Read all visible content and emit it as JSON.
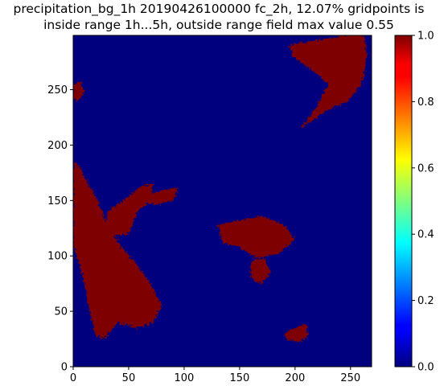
{
  "chart_data": {
    "type": "heatmap",
    "title_lines": [
      "precipitation_bg_1h 20190426100000 fc_2h, 12.07% gridpoints is",
      "inside range 1h...5h, outside range field max value 0.55"
    ],
    "xlabel": "",
    "ylabel": "",
    "xlim": [
      0,
      269
    ],
    "ylim": [
      0,
      299
    ],
    "x_ticks": [
      0,
      50,
      100,
      150,
      200,
      250
    ],
    "y_ticks": [
      0,
      50,
      100,
      150,
      200,
      250
    ],
    "x_tick_labels": [
      "0",
      "50",
      "100",
      "150",
      "200",
      "250"
    ],
    "y_tick_labels": [
      "0",
      "50",
      "100",
      "150",
      "200",
      "250"
    ],
    "colorbar": {
      "colormap": "jet",
      "range": [
        0.0,
        1.0
      ],
      "ticks": [
        0.0,
        0.2,
        0.4,
        0.6,
        0.8,
        1.0
      ],
      "tick_labels": [
        "0.0",
        "0.2",
        "0.4",
        "0.6",
        "0.8",
        "1.0"
      ]
    },
    "colors": {
      "background_value_color": "#00007f",
      "region_value_color": "#7f0000"
    },
    "cell_values": {
      "background": 0.0,
      "regions": 1.0
    },
    "regions": [
      {
        "name": "left-diagonal-band",
        "value": 1.0,
        "polygon": [
          [
            0,
            185
          ],
          [
            6,
            180
          ],
          [
            12,
            168
          ],
          [
            22,
            150
          ],
          [
            30,
            130
          ],
          [
            42,
            110
          ],
          [
            55,
            95
          ],
          [
            70,
            75
          ],
          [
            80,
            55
          ],
          [
            72,
            40
          ],
          [
            58,
            35
          ],
          [
            40,
            40
          ],
          [
            28,
            25
          ],
          [
            20,
            28
          ],
          [
            15,
            50
          ],
          [
            8,
            85
          ],
          [
            0,
            110
          ]
        ]
      },
      {
        "name": "left-band-upper-lobe",
        "value": 1.0,
        "polygon": [
          [
            30,
            140
          ],
          [
            45,
            150
          ],
          [
            60,
            162
          ],
          [
            72,
            165
          ],
          [
            70,
            150
          ],
          [
            58,
            140
          ],
          [
            50,
            120
          ],
          [
            38,
            118
          ],
          [
            30,
            128
          ]
        ]
      },
      {
        "name": "top-right-streak",
        "value": 1.0,
        "polygon": [
          [
            195,
            290
          ],
          [
            215,
            294
          ],
          [
            245,
            299
          ],
          [
            262,
            299
          ],
          [
            265,
            278
          ],
          [
            260,
            255
          ],
          [
            248,
            240
          ],
          [
            230,
            232
          ],
          [
            215,
            222
          ],
          [
            205,
            215
          ],
          [
            220,
            235
          ],
          [
            230,
            255
          ],
          [
            215,
            268
          ],
          [
            198,
            280
          ]
        ]
      },
      {
        "name": "top-right-upper-lobe",
        "value": 1.0,
        "polygon": [
          [
            230,
            280
          ],
          [
            245,
            290
          ],
          [
            262,
            298
          ],
          [
            264,
            285
          ],
          [
            250,
            278
          ],
          [
            238,
            274
          ]
        ]
      },
      {
        "name": "center-cluster",
        "value": 1.0,
        "polygon": [
          [
            130,
            128
          ],
          [
            150,
            132
          ],
          [
            170,
            136
          ],
          [
            190,
            128
          ],
          [
            200,
            115
          ],
          [
            185,
            102
          ],
          [
            165,
            98
          ],
          [
            150,
            108
          ],
          [
            135,
            112
          ]
        ]
      },
      {
        "name": "center-lower-strands",
        "value": 1.0,
        "polygon": [
          [
            160,
            95
          ],
          [
            172,
            98
          ],
          [
            178,
            85
          ],
          [
            170,
            75
          ],
          [
            160,
            80
          ]
        ]
      },
      {
        "name": "left-edge-top-patch",
        "value": 1.0,
        "polygon": [
          [
            0,
            255
          ],
          [
            6,
            258
          ],
          [
            10,
            248
          ],
          [
            4,
            240
          ],
          [
            0,
            242
          ]
        ]
      },
      {
        "name": "bottom-right-patch",
        "value": 1.0,
        "polygon": [
          [
            190,
            30
          ],
          [
            200,
            35
          ],
          [
            210,
            38
          ],
          [
            212,
            28
          ],
          [
            203,
            22
          ],
          [
            192,
            25
          ]
        ]
      },
      {
        "name": "upper-middle-fragments",
        "value": 1.0,
        "polygon": [
          [
            60,
            150
          ],
          [
            75,
            158
          ],
          [
            95,
            162
          ],
          [
            90,
            150
          ],
          [
            75,
            146
          ]
        ]
      }
    ]
  }
}
